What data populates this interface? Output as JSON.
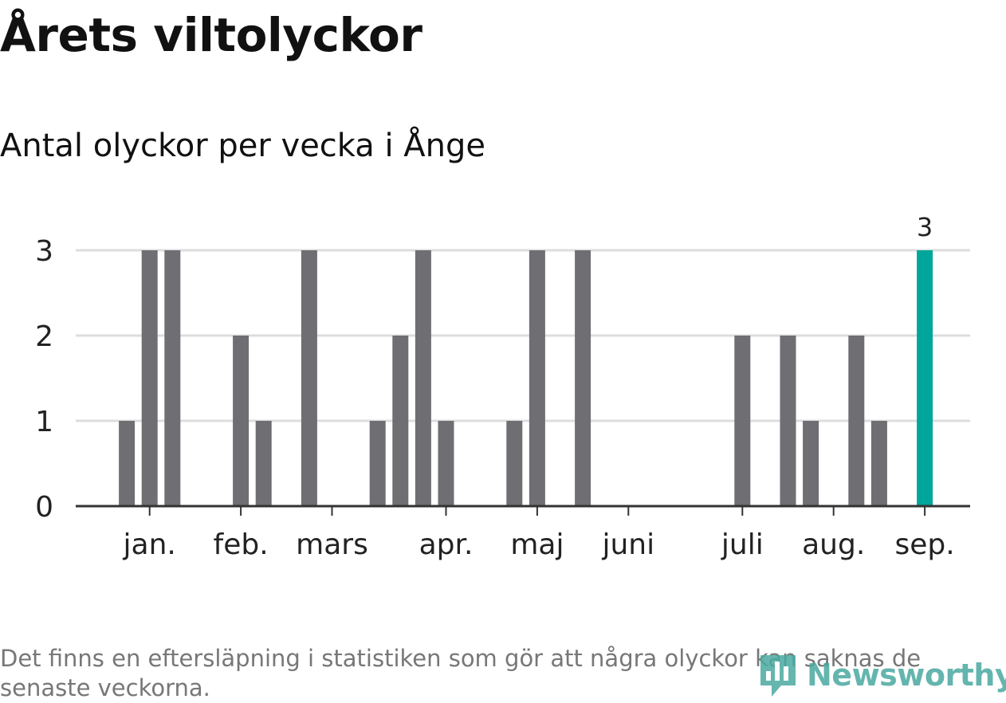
{
  "title": "Årets viltolyckor",
  "subtitle": "Antal olyckor per vecka i Ånge",
  "note": "Det finns en eftersläpning i statistiken som gör att några olyckor kan saknas de senaste veckorna.",
  "logo_text": "Newsworthy",
  "colors": {
    "bar": "#6f6e73",
    "highlight": "#00a69b",
    "grid": "#dddddd",
    "axis": "#333333",
    "text": "#222222",
    "logo": "#4aa9a1"
  },
  "chart_data": {
    "type": "bar",
    "title": "Årets viltolyckor",
    "subtitle": "Antal olyckor per vecka i Ånge",
    "xlabel": "",
    "ylabel": "",
    "ylim": [
      0,
      3
    ],
    "yticks": [
      0,
      1,
      2,
      3
    ],
    "grid": true,
    "x": [
      1,
      2,
      3,
      4,
      5,
      6,
      7,
      8,
      9,
      10,
      11,
      12,
      13,
      14,
      15,
      16,
      17,
      18,
      19,
      20,
      21,
      22,
      23,
      24,
      25,
      26,
      27,
      28,
      29,
      30,
      31,
      32,
      33,
      34,
      35,
      36,
      37,
      38
    ],
    "values": [
      0,
      1,
      3,
      3,
      0,
      0,
      2,
      1,
      0,
      3,
      0,
      0,
      1,
      2,
      3,
      1,
      0,
      0,
      1,
      3,
      0,
      3,
      0,
      0,
      0,
      0,
      0,
      0,
      2,
      0,
      2,
      1,
      0,
      2,
      1,
      0,
      3,
      0
    ],
    "highlight_index": 36,
    "highlight_label": "3",
    "month_ticks": [
      {
        "label": "jan.",
        "week": 3
      },
      {
        "label": "feb.",
        "week": 7
      },
      {
        "label": "mars",
        "week": 11
      },
      {
        "label": "apr.",
        "week": 16
      },
      {
        "label": "maj",
        "week": 20
      },
      {
        "label": "juni",
        "week": 24
      },
      {
        "label": "juli",
        "week": 29
      },
      {
        "label": "aug.",
        "week": 33
      },
      {
        "label": "sep.",
        "week": 37
      }
    ]
  }
}
